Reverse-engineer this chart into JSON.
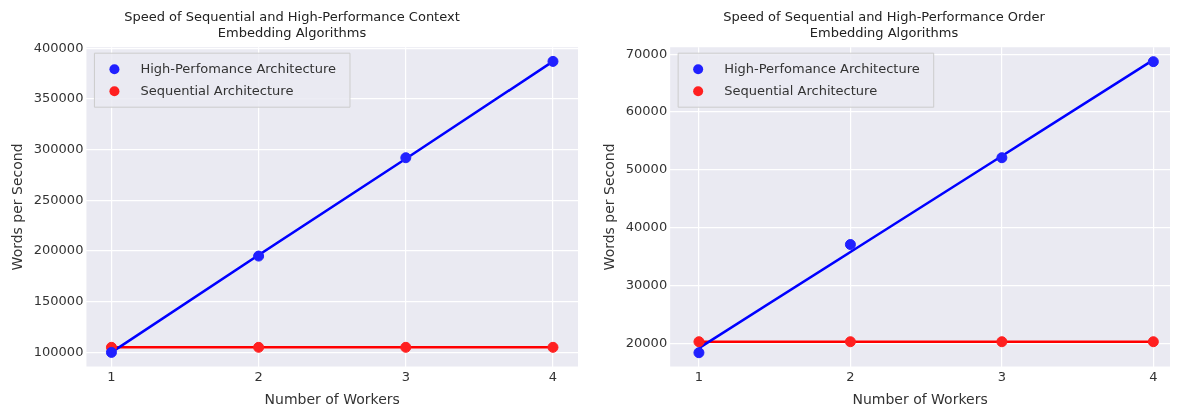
{
  "chart_data": [
    {
      "type": "scatter",
      "title": "Speed of Sequential and High-Performance Context\nEmbedding Algorithms",
      "xlabel": "Number of Workers",
      "ylabel": "Words per Second",
      "x": [
        1,
        2,
        3,
        4
      ],
      "xlim": [
        0.83,
        4.17
      ],
      "xticks": [
        1,
        2,
        3,
        4
      ],
      "ylim": [
        86000,
        401000
      ],
      "yticks": [
        100000,
        150000,
        200000,
        250000,
        300000,
        350000,
        400000
      ],
      "grid": true,
      "legend": "top left",
      "marker": "circle",
      "series": [
        {
          "name": "High-Perfomance Architecture",
          "color": "#2020ff",
          "values": [
            100000,
            195000,
            292000,
            387000
          ]
        },
        {
          "name": "Sequential Architecture",
          "color": "#ff2020",
          "values": [
            105000,
            105000,
            105000,
            105000
          ]
        },
        {
          "type": "line",
          "marker": "none",
          "color": "#0000ff",
          "values": [
            100000,
            196000,
            291000,
            387000
          ]
        },
        {
          "type": "line",
          "marker": "none",
          "color": "#ff0000",
          "values": [
            105000,
            105000,
            105000,
            105000
          ]
        }
      ]
    },
    {
      "type": "scatter",
      "title": "Speed of Sequential and High-Performance Order\nEmbedding Algorithms",
      "xlabel": "Number of Workers",
      "ylabel": "Words per Second",
      "x": [
        1,
        2,
        3,
        4
      ],
      "xlim": [
        0.81,
        4.11
      ],
      "xticks": [
        1,
        2,
        3,
        4
      ],
      "ylim": [
        16000,
        71200
      ],
      "yticks": [
        20000,
        30000,
        40000,
        50000,
        60000,
        70000
      ],
      "grid": true,
      "legend": "top left",
      "marker": "circle",
      "series": [
        {
          "name": "High-Perfomance Architecture",
          "color": "#2020ff",
          "values": [
            18400,
            37100,
            52100,
            68700
          ]
        },
        {
          "name": "Sequential Architecture",
          "color": "#ff2020",
          "values": [
            20300,
            20300,
            20300,
            20300
          ]
        },
        {
          "type": "line",
          "marker": "none",
          "color": "#0000ff",
          "values": [
            19200,
            35800,
            52400,
            69000
          ]
        },
        {
          "type": "line",
          "marker": "none",
          "color": "#ff0000",
          "values": [
            20300,
            20300,
            20300,
            20300
          ]
        }
      ]
    }
  ]
}
